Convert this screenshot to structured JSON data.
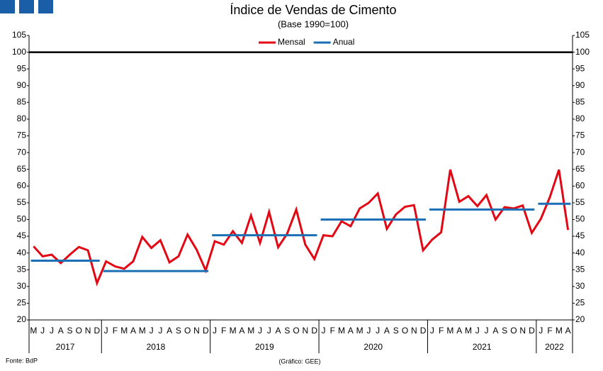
{
  "chart_data": {
    "type": "line",
    "title": "Índice de Vendas de Cimento",
    "subtitle": "(Base 1990=100)",
    "categories": [
      "M",
      "J",
      "J",
      "A",
      "S",
      "O",
      "N",
      "D",
      "J",
      "F",
      "M",
      "A",
      "M",
      "J",
      "J",
      "A",
      "S",
      "O",
      "N",
      "D",
      "J",
      "F",
      "M",
      "A",
      "M",
      "J",
      "J",
      "A",
      "S",
      "O",
      "N",
      "D",
      "J",
      "F",
      "M",
      "A",
      "M",
      "J",
      "J",
      "A",
      "S",
      "O",
      "N",
      "D",
      "J",
      "F",
      "M",
      "A",
      "M",
      "J",
      "J",
      "A",
      "S",
      "O",
      "N",
      "D",
      "J",
      "F",
      "M",
      "A"
    ],
    "year_groups": [
      {
        "label": "2017",
        "months": 8
      },
      {
        "label": "2018",
        "months": 12
      },
      {
        "label": "2019",
        "months": 12
      },
      {
        "label": "2020",
        "months": 12
      },
      {
        "label": "2021",
        "months": 12
      },
      {
        "label": "2022",
        "months": 4
      }
    ],
    "series": [
      {
        "name": "Mensal",
        "color": "#e30613",
        "values": [
          42,
          39,
          39.5,
          37,
          39.5,
          41.8,
          40.8,
          31,
          37.5,
          36,
          35.3,
          37.5,
          44.8,
          41.5,
          43.8,
          37.2,
          39,
          45.5,
          41,
          34.8,
          43.5,
          42.5,
          46.5,
          43,
          51.2,
          43,
          52.3,
          41.7,
          45.8,
          53,
          42.5,
          38.2,
          45.3,
          45,
          49.5,
          48,
          53.3,
          55,
          57.8,
          47.2,
          51.5,
          53.8,
          54.3,
          40.8,
          44,
          46.2,
          64.9,
          55.3,
          57,
          54,
          57.3,
          50,
          53.7,
          53.3,
          54.2,
          46,
          50.2,
          56.7,
          64.9,
          46.9
        ]
      },
      {
        "name": "Anual",
        "color": "#1a6fb5",
        "values": [
          37.7,
          37.7,
          37.7,
          37.7,
          37.7,
          37.7,
          37.7,
          37.7,
          34.6,
          34.6,
          34.6,
          34.6,
          34.6,
          34.6,
          34.6,
          34.6,
          34.6,
          34.6,
          34.6,
          34.6,
          45.3,
          45.3,
          45.3,
          45.3,
          45.3,
          45.3,
          45.3,
          45.3,
          45.3,
          45.3,
          45.3,
          45.3,
          50,
          50,
          50,
          50,
          50,
          50,
          50,
          50,
          50,
          50,
          50,
          50,
          53,
          53,
          53,
          53,
          53,
          53,
          53,
          53,
          53,
          53,
          53,
          53,
          54.7,
          54.7,
          54.7,
          54.7
        ]
      }
    ],
    "reference_line": 100,
    "ylim": [
      20,
      105
    ],
    "yticks": [
      20,
      25,
      30,
      35,
      40,
      45,
      50,
      55,
      60,
      65,
      70,
      75,
      80,
      85,
      90,
      95,
      100,
      105
    ],
    "legend": "top",
    "source": "Fonte: BdP",
    "credit": "(Gráfico: GEE)"
  }
}
